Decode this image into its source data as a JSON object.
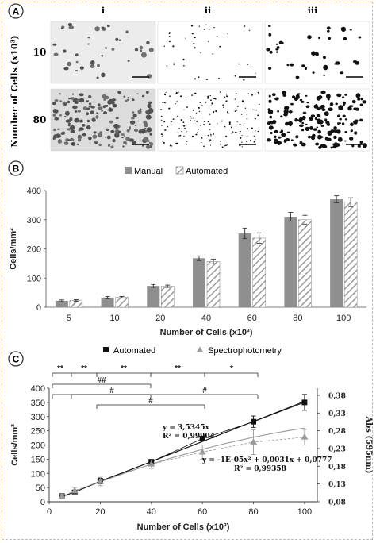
{
  "panel_a": {
    "badge": "A",
    "ylabel": "Number of Cells (x10³)",
    "columns": [
      "i",
      "ii",
      "iii"
    ],
    "rows": [
      "10",
      "80"
    ]
  },
  "panel_b": {
    "badge": "B"
  },
  "panel_c": {
    "badge": "C",
    "eq1_a": "y = 3,5345x",
    "eq1_b": "R² = 0,99904",
    "eq2_a": "y = -1E-05x² + 0,0031x + 0,0777",
    "eq2_b": "R² = 0,99358",
    "sig_row1": [
      "**",
      "**",
      "**",
      "**",
      "*"
    ],
    "sig_row2": [
      "##"
    ],
    "sig_row3": [
      "#",
      "#",
      "#"
    ]
  },
  "chart_data": [
    {
      "type": "bar",
      "categories": [
        "5",
        "10",
        "20",
        "40",
        "60",
        "80",
        "100"
      ],
      "series": [
        {
          "name": "Manual",
          "values": [
            22,
            33,
            73,
            168,
            253,
            310,
            370
          ],
          "errors": [
            3,
            4,
            5,
            8,
            18,
            15,
            12
          ],
          "color": "#8f8f8f"
        },
        {
          "name": "Automated",
          "values": [
            23,
            34,
            72,
            157,
            237,
            300,
            360
          ],
          "errors": [
            3,
            3,
            4,
            8,
            18,
            15,
            15
          ],
          "color": "#ffffff",
          "pattern": "hatched"
        }
      ],
      "xlabel": "Number of Cells (x10³)",
      "ylabel": "Cells/mm²",
      "yticks": [
        "0",
        "100",
        "200",
        "300",
        "400"
      ],
      "ylim": [
        0,
        400
      ],
      "legend": "top-center",
      "grid": false
    },
    {
      "type": "line",
      "x": [
        5,
        10,
        20,
        40,
        60,
        80,
        100
      ],
      "xticks": [
        "0",
        "20",
        "40",
        "60",
        "80",
        "100"
      ],
      "xlim": [
        0,
        105
      ],
      "series": [
        {
          "name": "Automated",
          "axis": "left",
          "values": [
            20,
            33,
            73,
            141,
            222,
            282,
            350
          ],
          "errors": [
            5,
            8,
            10,
            6,
            8,
            20,
            28
          ],
          "color": "#111111",
          "marker": "square"
        },
        {
          "name": "Spectrophotometry",
          "axis": "right",
          "values": [
            0.095,
            0.111,
            0.137,
            0.186,
            0.22,
            0.248,
            0.262
          ],
          "errors": [
            0.006,
            0.009,
            0.012,
            0.012,
            0.02,
            0.035,
            0.022
          ],
          "color": "#999999",
          "marker": "triangle"
        }
      ],
      "xlabel": "Number of Cells (x10³)",
      "ylabel": "Cells/mm²",
      "ylabel_right": "Abs (595nm)",
      "yticks": [
        "0",
        "50",
        "100",
        "150",
        "200",
        "250",
        "300",
        "350",
        "400"
      ],
      "ylim": [
        0,
        400
      ],
      "yticks_right": [
        "0,08",
        "0,13",
        "0,18",
        "0,23",
        "0,28",
        "0,33",
        "0,38"
      ],
      "ylim_right": [
        0.08,
        0.4
      ],
      "legend": "top-center",
      "grid": false
    }
  ]
}
